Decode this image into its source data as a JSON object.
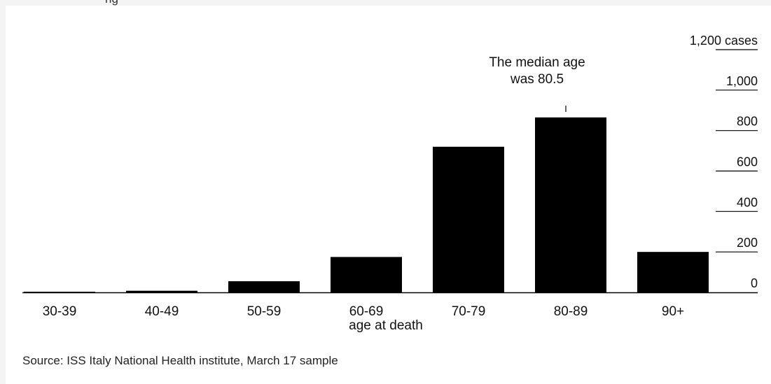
{
  "top_fragment": "ng",
  "chart_data": {
    "type": "bar",
    "categories": [
      "30-39",
      "40-49",
      "50-59",
      "60-69",
      "70-79",
      "80-89",
      "90+"
    ],
    "values": [
      3,
      8,
      55,
      175,
      720,
      865,
      200
    ],
    "ylim": [
      0,
      1200
    ],
    "yticks": [
      {
        "value": 0,
        "label": "0"
      },
      {
        "value": 200,
        "label": "200"
      },
      {
        "value": 400,
        "label": "400"
      },
      {
        "value": 600,
        "label": "600"
      },
      {
        "value": 800,
        "label": "800"
      },
      {
        "value": 1000,
        "label": "1,000"
      },
      {
        "value": 1200,
        "label": "1,200 cases"
      }
    ],
    "xlabel": "age at death",
    "annotation": {
      "lines": [
        "The median age",
        "was 80.5"
      ],
      "category": "80-89"
    },
    "grid": false,
    "bar_color": "#000000"
  },
  "source": "Source: ISS Italy National Health institute, March 17 sample"
}
